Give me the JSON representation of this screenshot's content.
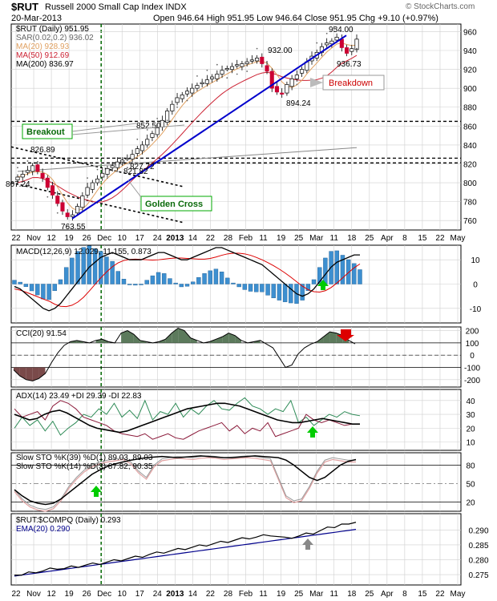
{
  "header": {
    "symbol": "$RUT",
    "name": "Russell 2000 Small Cap Index INDX",
    "date": "20-Mar-2013",
    "ohlc": "Open 946.64  High 951.95  Low 946.64  Close 951.95  Chg +9.10 (+0.97%)",
    "watermark": "© StockCharts.com"
  },
  "colors": {
    "up": "#ffffff",
    "down": "#cc0033",
    "trendline": "#0000cc",
    "grid": "#cfcfcf",
    "ma20": "#e0a060",
    "ma50": "#cc2233",
    "ma200": "#888888",
    "sar": "#666666",
    "macd_hist": "#3d8fd0",
    "cci_fill": "#5c7a5c",
    "cci_fill_neg": "#7a4a4a",
    "adx_plus": "#2e8b57",
    "adx_minus": "#8b1a3a",
    "ratio_ema": "#00008b",
    "green_arrow": "#00cc00",
    "red_arrow": "#dd0000",
    "gray_arrow": "#888888",
    "annotation_box": "#00aa00",
    "breakdown_box": "#cc0000",
    "vline": "#006600"
  },
  "x_labels": [
    "22",
    "Nov",
    "12",
    "19",
    "26",
    "Dec",
    "10",
    "17",
    "24",
    "2013",
    "14",
    "22",
    "28",
    "Feb",
    "11",
    "19",
    "25",
    "Mar",
    "11",
    "18",
    "25",
    "Apr",
    "8",
    "15",
    "22",
    "May"
  ],
  "price_panel": {
    "legend": [
      {
        "text": "$RUT (Daily) 951.95",
        "color": "#000000"
      },
      {
        "text": "SAR(0.02,0.2) 936.02",
        "color": "#666666"
      },
      {
        "text": "MA(20) 928.93",
        "color": "#e0a060"
      },
      {
        "text": "MA(50) 912.69",
        "color": "#cc2233"
      },
      {
        "text": "MA(200) 836.97",
        "color": "#000000"
      }
    ],
    "yticks": [
      760,
      780,
      800,
      820,
      840,
      860,
      880,
      900,
      920,
      940,
      960
    ],
    "ylim": [
      750,
      968
    ],
    "value_labels": [
      "807.24",
      "826.89",
      "763.55",
      "821.82",
      "827.72",
      "852.50",
      "932.00",
      "894.24",
      "954.00",
      "936.73"
    ],
    "annotations": {
      "breakout": "Breakout",
      "golden_cross": "Golden Cross",
      "breakdown": "Breakdown"
    }
  },
  "macd_panel": {
    "legend": "MACD(12,26,9) 12.029, 11.155, 0.873",
    "yticks": [
      10,
      0,
      -10
    ],
    "ylim": [
      -16,
      16
    ]
  },
  "cci_panel": {
    "legend": "CCI(20) 91.54",
    "yticks": [
      200,
      100,
      0,
      -100,
      -200
    ],
    "ylim": [
      -260,
      230
    ]
  },
  "adx_panel": {
    "legend": "ADX(14) 23.49 +DI 29.39 -DI 22.83",
    "yticks": [
      40,
      30,
      20,
      10
    ],
    "ylim": [
      4,
      48
    ]
  },
  "sto_panel": {
    "legend1": "Slow STO %K(39) %D(1) 89.03, 89.03",
    "legend2": "Slow STO %K(14) %D(3) 87.82, 90.35",
    "yticks": [
      80,
      50,
      20
    ],
    "ylim": [
      5,
      100
    ]
  },
  "ratio_panel": {
    "legend": "$RUT:$COMPQ (Daily) 0.293",
    "ema_legend": "EMA(20) 0.290",
    "yticks": [
      "0.290",
      "0.285",
      "0.280",
      "0.275"
    ],
    "ytick_values": [
      0.29,
      0.285,
      0.28,
      0.275
    ],
    "ylim": [
      0.2715,
      0.2955
    ]
  },
  "chart_data": {
    "type": "line",
    "title": "$RUT Russell 2000 Small Cap Index INDX",
    "series": [
      {
        "name": "$RUT (Daily)",
        "values": [
          806,
          809,
          813,
          818,
          812,
          805,
          795,
          787,
          778,
          770,
          764,
          766,
          775,
          786,
          795,
          800,
          804,
          810,
          815,
          818,
          822,
          824,
          826,
          830,
          836,
          840,
          846,
          852,
          858,
          866,
          876,
          883,
          890,
          893,
          897,
          900,
          903,
          906,
          909,
          912,
          915,
          919,
          921,
          923,
          925,
          926,
          928,
          930,
          932,
          926,
          918,
          900,
          896,
          894,
          904,
          910,
          914,
          920,
          928,
          934,
          938,
          944,
          948,
          950,
          954,
          943,
          937,
          942,
          952
        ]
      },
      {
        "name": "MA(20) 928.93",
        "values": []
      },
      {
        "name": "MA(50) 912.69",
        "values": []
      },
      {
        "name": "MA(200) 836.97",
        "values": []
      }
    ]
  }
}
